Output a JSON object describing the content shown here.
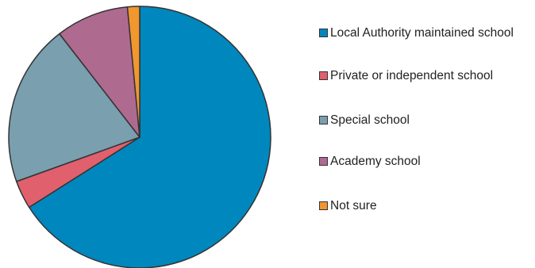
{
  "chart_data": {
    "type": "pie",
    "title": "",
    "slices": [
      {
        "label": "Local Authority maintained school",
        "value": 66,
        "color": "#0087BD"
      },
      {
        "label": "Private or independent school",
        "value": 3.5,
        "color": "#E0606E"
      },
      {
        "label": "Special school",
        "value": 20,
        "color": "#7A9FAF"
      },
      {
        "label": "Academy school",
        "value": 9,
        "color": "#AF6A90"
      },
      {
        "label": "Not sure",
        "value": 1.5,
        "color": "#F0972F"
      }
    ],
    "start_angle_deg": 0,
    "direction": "clockwise",
    "legend_position": "right",
    "slice_border_color": "#333333"
  }
}
